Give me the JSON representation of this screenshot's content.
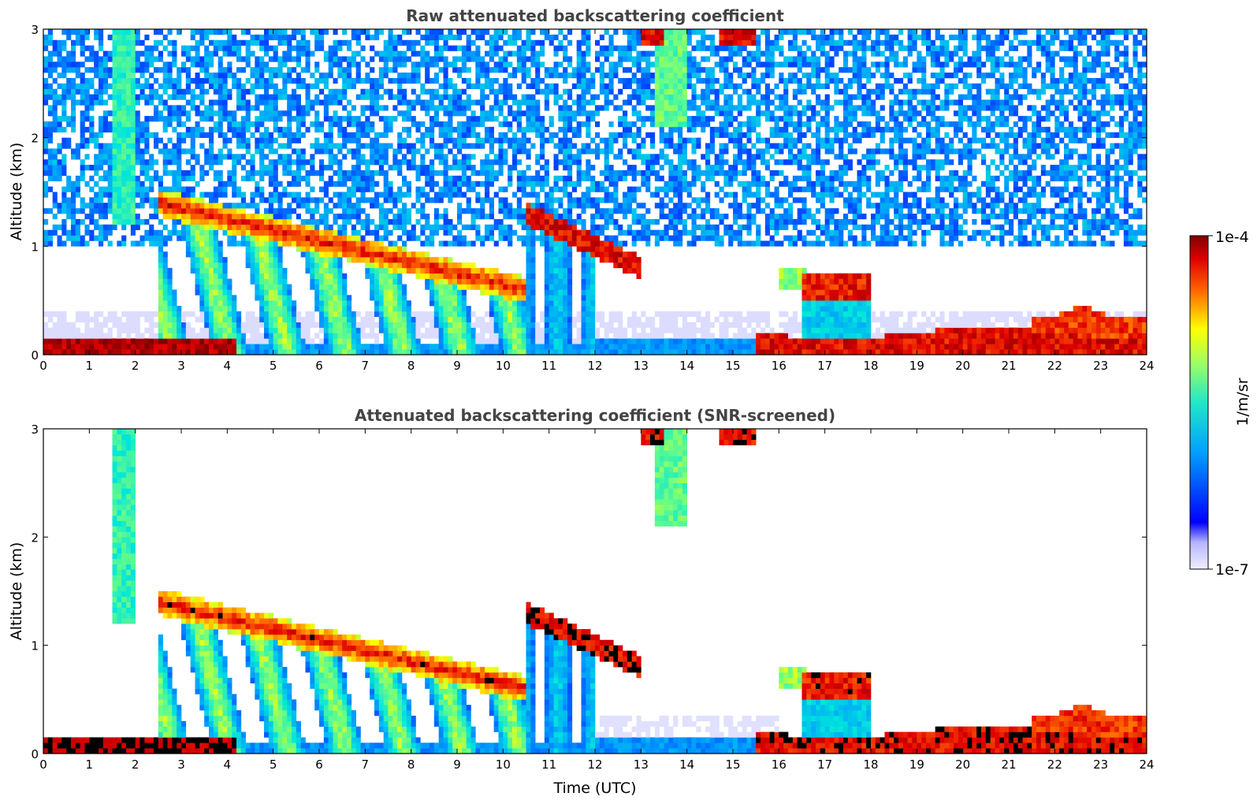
{
  "chart_data": [
    {
      "type": "heatmap",
      "title": "Raw attenuated backscattering coefficient",
      "xlabel": "",
      "ylabel": "Altitude (km)",
      "xlim": [
        0,
        24
      ],
      "ylim": [
        0,
        3
      ],
      "xticks": [
        "0",
        "1",
        "2",
        "3",
        "4",
        "5",
        "6",
        "7",
        "8",
        "9",
        "10",
        "11",
        "12",
        "13",
        "14",
        "15",
        "16",
        "17",
        "18",
        "19",
        "20",
        "21",
        "22",
        "23",
        "24"
      ],
      "yticks": [
        "0",
        "1",
        "2",
        "3"
      ],
      "screened": false
    },
    {
      "type": "heatmap",
      "title": "Attenuated backscattering coefficient (SNR-screened)",
      "xlabel": "Time (UTC)",
      "ylabel": "Altitude (km)",
      "xlim": [
        0,
        24
      ],
      "ylim": [
        0,
        3
      ],
      "xticks": [
        "0",
        "1",
        "2",
        "3",
        "4",
        "5",
        "6",
        "7",
        "8",
        "9",
        "10",
        "11",
        "12",
        "13",
        "14",
        "15",
        "16",
        "17",
        "18",
        "19",
        "20",
        "21",
        "22",
        "23",
        "24"
      ],
      "yticks": [
        "0",
        "1",
        "2",
        "3"
      ],
      "screened": true
    }
  ],
  "colorbar": {
    "label": "1/m/sr",
    "min_label": "1e-7",
    "max_label": "1e-4",
    "colormap": "jet"
  }
}
